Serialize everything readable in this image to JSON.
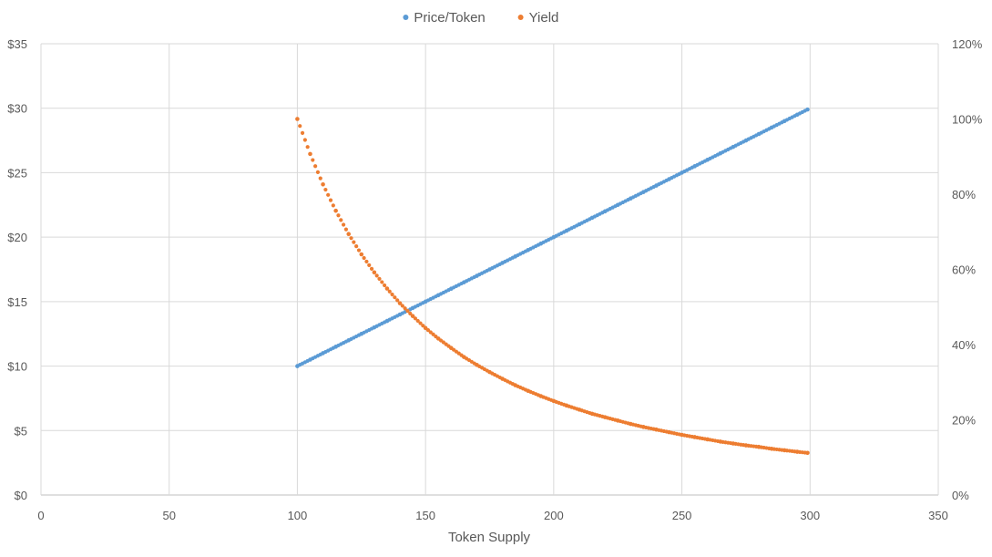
{
  "chart_data": {
    "type": "scatter",
    "title": "",
    "xlabel": "Token Supply",
    "ylabel": "",
    "y2label": "",
    "xlim": [
      0,
      350
    ],
    "ylim": [
      0,
      35
    ],
    "y2lim": [
      0,
      1.2
    ],
    "x_ticks": [
      0,
      50,
      100,
      150,
      200,
      250,
      300,
      350
    ],
    "x_tick_labels": [
      "0",
      "50",
      "100",
      "150",
      "200",
      "250",
      "300",
      "350"
    ],
    "y_ticks": [
      0,
      5,
      10,
      15,
      20,
      25,
      30,
      35
    ],
    "y_tick_labels": [
      "$0",
      "$5",
      "$10",
      "$15",
      "$20",
      "$25",
      "$30",
      "$35"
    ],
    "y2_ticks": [
      0,
      0.2,
      0.4,
      0.6,
      0.8,
      1.0,
      1.2
    ],
    "y2_tick_labels": [
      "0%",
      "20%",
      "40%",
      "60%",
      "80%",
      "100%",
      "120%"
    ],
    "grid": true,
    "legend_position": "top",
    "series": [
      {
        "name": "Price/Token",
        "axis": "left",
        "color": "#5b9bd5",
        "x": [
          100,
          105,
          110,
          115,
          120,
          125,
          130,
          135,
          140,
          145,
          150,
          155,
          160,
          165,
          170,
          175,
          180,
          185,
          190,
          195,
          200,
          205,
          210,
          215,
          220,
          225,
          230,
          235,
          240,
          245,
          250,
          255,
          260,
          265,
          270,
          275,
          280,
          285,
          290,
          295,
          299
        ],
        "y": [
          10.0,
          10.5,
          11.0,
          11.5,
          12.0,
          12.5,
          13.0,
          13.5,
          14.0,
          14.5,
          15.0,
          15.5,
          16.0,
          16.5,
          17.0,
          17.5,
          18.0,
          18.5,
          19.0,
          19.5,
          20.0,
          20.5,
          21.0,
          21.5,
          22.0,
          22.5,
          23.0,
          23.5,
          24.0,
          24.5,
          25.0,
          25.5,
          26.0,
          26.5,
          27.0,
          27.5,
          28.0,
          28.5,
          29.0,
          29.5,
          29.9
        ]
      },
      {
        "name": "Yield",
        "axis": "right",
        "color": "#ed7d31",
        "x": [
          100,
          105,
          110,
          115,
          120,
          125,
          130,
          135,
          140,
          145,
          150,
          155,
          160,
          165,
          170,
          175,
          180,
          185,
          190,
          195,
          200,
          205,
          210,
          215,
          220,
          225,
          230,
          235,
          240,
          245,
          250,
          255,
          260,
          265,
          270,
          275,
          280,
          285,
          290,
          295,
          299
        ],
        "y": [
          1.0,
          0.907,
          0.826,
          0.756,
          0.694,
          0.64,
          0.592,
          0.549,
          0.51,
          0.476,
          0.444,
          0.416,
          0.391,
          0.367,
          0.346,
          0.327,
          0.309,
          0.292,
          0.277,
          0.263,
          0.25,
          0.238,
          0.227,
          0.216,
          0.207,
          0.198,
          0.189,
          0.181,
          0.174,
          0.167,
          0.16,
          0.154,
          0.148,
          0.142,
          0.137,
          0.132,
          0.128,
          0.123,
          0.119,
          0.115,
          0.112
        ]
      }
    ]
  }
}
